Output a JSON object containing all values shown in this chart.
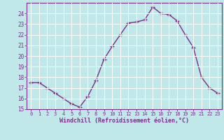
{
  "x": [
    0,
    1,
    2,
    3,
    4,
    5,
    6,
    7,
    8,
    9,
    10,
    11,
    12,
    13,
    14,
    15,
    16,
    17,
    18,
    19,
    20,
    21,
    22,
    23
  ],
  "y": [
    17.5,
    17.5,
    17.0,
    16.5,
    16.0,
    15.5,
    15.2,
    16.2,
    17.7,
    19.7,
    20.9,
    22.0,
    23.1,
    23.2,
    23.4,
    24.6,
    24.0,
    23.9,
    23.3,
    22.0,
    20.8,
    18.0,
    17.0,
    16.5
  ],
  "line_color": "#7b2d8b",
  "marker": "+",
  "marker_size": 4,
  "xlabel": "Windchill (Refroidissement éolien,°C)",
  "xlabel_color": "#7b2d8b",
  "ylim": [
    15,
    25
  ],
  "xlim": [
    -0.5,
    23.5
  ],
  "yticks": [
    15,
    16,
    17,
    18,
    19,
    20,
    21,
    22,
    23,
    24
  ],
  "xticks": [
    0,
    1,
    2,
    3,
    4,
    5,
    6,
    7,
    8,
    9,
    10,
    11,
    12,
    13,
    14,
    15,
    16,
    17,
    18,
    19,
    20,
    21,
    22,
    23
  ],
  "bg_color": "#c0e8e8",
  "grid_color": "#ffffff",
  "tick_color": "#7b2d8b",
  "spine_color": "#7b2d8b"
}
